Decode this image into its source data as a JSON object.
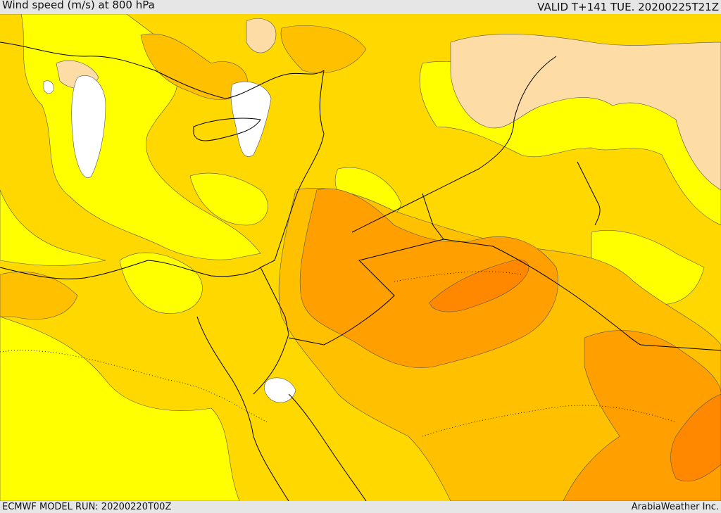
{
  "header": {
    "title": "Wind speed (m/s) at 800 hPa",
    "valid": "VALID T+141 TUE. 20200225T21Z"
  },
  "footer": {
    "model_run": "ECMWF MODEL RUN: 20200220T00Z",
    "credit": "ArabiaWeather Inc."
  },
  "map": {
    "field": "Wind speed at 800 hPa",
    "colors": {
      "white": "#ffffff",
      "tan": "#fddca6",
      "yellow": "#ffff00",
      "gold": "#ffd800",
      "amber": "#ffc000",
      "orange": "#ff9f00",
      "dark_orange": "#ff8800",
      "border": "#000000"
    }
  }
}
